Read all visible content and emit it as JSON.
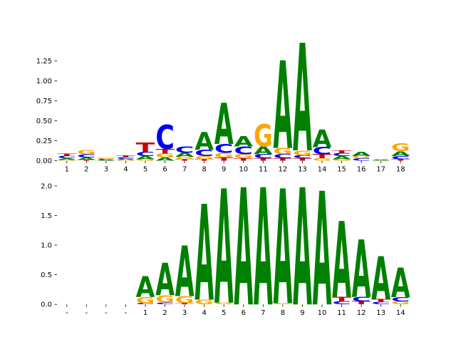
{
  "figure": {
    "title": ""
  },
  "colors": {
    "A": "#008000",
    "C": "#0000EE",
    "G": "#FFA500",
    "T": "#CC0000",
    "tick": "#000000",
    "background": "#ffffff"
  },
  "chart_data": [
    {
      "type": "sequence_logo",
      "panel": "top",
      "alphabet": "ACGT",
      "ylabel": "",
      "xlabel": "",
      "title": "",
      "grid": false,
      "legend": "none",
      "ylim": [
        0,
        1.5
      ],
      "yticks": [
        "0.00",
        "0.25",
        "0.50",
        "0.75",
        "1.00",
        "1.25"
      ],
      "positions": [
        {
          "label": "1",
          "stack": [
            [
              "G",
              0.01
            ],
            [
              "A",
              0.02
            ],
            [
              "C",
              0.03
            ],
            [
              "T",
              0.03
            ]
          ]
        },
        {
          "label": "2",
          "stack": [
            [
              "T",
              0.01
            ],
            [
              "A",
              0.03
            ],
            [
              "C",
              0.04
            ],
            [
              "G",
              0.05
            ]
          ]
        },
        {
          "label": "3",
          "stack": [
            [
              "A",
              0.01
            ],
            [
              "C",
              0.012
            ],
            [
              "G",
              0.015
            ]
          ]
        },
        {
          "label": "4",
          "stack": [
            [
              "G",
              0.01
            ],
            [
              "A",
              0.015
            ],
            [
              "C",
              0.02
            ],
            [
              "T",
              0.025
            ]
          ]
        },
        {
          "label": "5",
          "stack": [
            [
              "G",
              0.02
            ],
            [
              "A",
              0.04
            ],
            [
              "C",
              0.05
            ],
            [
              "T",
              0.12
            ]
          ]
        },
        {
          "label": "6",
          "stack": [
            [
              "A",
              0.04
            ],
            [
              "G",
              0.05
            ],
            [
              "T",
              0.06
            ],
            [
              "C",
              0.3
            ]
          ]
        },
        {
          "label": "7",
          "stack": [
            [
              "T",
              0.02
            ],
            [
              "G",
              0.03
            ],
            [
              "A",
              0.05
            ],
            [
              "C",
              0.08
            ]
          ]
        },
        {
          "label": "8",
          "stack": [
            [
              "T",
              0.02
            ],
            [
              "G",
              0.04
            ],
            [
              "C",
              0.08
            ],
            [
              "A",
              0.22
            ]
          ]
        },
        {
          "label": "9",
          "stack": [
            [
              "T",
              0.04
            ],
            [
              "G",
              0.06
            ],
            [
              "C",
              0.11
            ],
            [
              "A",
              0.52
            ]
          ]
        },
        {
          "label": "10",
          "stack": [
            [
              "T",
              0.03
            ],
            [
              "G",
              0.05
            ],
            [
              "C",
              0.1
            ],
            [
              "A",
              0.13
            ]
          ]
        },
        {
          "label": "11",
          "stack": [
            [
              "T",
              0.03
            ],
            [
              "C",
              0.05
            ],
            [
              "A",
              0.1
            ],
            [
              "G",
              0.28
            ]
          ]
        },
        {
          "label": "12",
          "stack": [
            [
              "T",
              0.03
            ],
            [
              "C",
              0.05
            ],
            [
              "G",
              0.08
            ],
            [
              "A",
              1.1
            ]
          ]
        },
        {
          "label": "13",
          "stack": [
            [
              "T",
              0.03
            ],
            [
              "C",
              0.04
            ],
            [
              "G",
              0.06
            ],
            [
              "A",
              1.35
            ]
          ]
        },
        {
          "label": "14",
          "stack": [
            [
              "G",
              0.03
            ],
            [
              "T",
              0.05
            ],
            [
              "C",
              0.09
            ],
            [
              "A",
              0.22
            ]
          ]
        },
        {
          "label": "15",
          "stack": [
            [
              "G",
              0.02
            ],
            [
              "A",
              0.04
            ],
            [
              "C",
              0.04
            ],
            [
              "T",
              0.03
            ]
          ]
        },
        {
          "label": "16",
          "stack": [
            [
              "C",
              0.03
            ],
            [
              "G",
              0.03
            ],
            [
              "A",
              0.05
            ]
          ]
        },
        {
          "label": "17",
          "stack": [
            [
              "A",
              0.01
            ],
            [
              "G",
              0.01
            ]
          ]
        },
        {
          "label": "18",
          "stack": [
            [
              "T",
              0.02
            ],
            [
              "C",
              0.04
            ],
            [
              "A",
              0.06
            ],
            [
              "G",
              0.1
            ]
          ]
        }
      ]
    },
    {
      "type": "sequence_logo",
      "panel": "bottom",
      "alphabet": "ACGT",
      "ylabel": "",
      "xlabel": "",
      "title": "",
      "grid": false,
      "legend": "none",
      "ylim": [
        0,
        2.02
      ],
      "yticks": [
        "0.0",
        "0.5",
        "1.0",
        "1.5",
        "2.0"
      ],
      "positions": [
        {
          "label": "-",
          "stack": []
        },
        {
          "label": "-",
          "stack": []
        },
        {
          "label": "-",
          "stack": []
        },
        {
          "label": "-",
          "stack": []
        },
        {
          "label": "1",
          "stack": [
            [
              "C",
              0.02
            ],
            [
              "G",
              0.1
            ],
            [
              "A",
              0.35
            ]
          ]
        },
        {
          "label": "2",
          "stack": [
            [
              "C",
              0.03
            ],
            [
              "G",
              0.12
            ],
            [
              "A",
              0.55
            ]
          ]
        },
        {
          "label": "3",
          "stack": [
            [
              "T",
              0.02
            ],
            [
              "G",
              0.12
            ],
            [
              "A",
              0.85
            ]
          ]
        },
        {
          "label": "4",
          "stack": [
            [
              "G",
              0.08
            ],
            [
              "A",
              1.62
            ]
          ]
        },
        {
          "label": "5",
          "stack": [
            [
              "G",
              0.03
            ],
            [
              "A",
              1.93
            ]
          ]
        },
        {
          "label": "6",
          "stack": [
            [
              "A",
              1.98
            ]
          ]
        },
        {
          "label": "7",
          "stack": [
            [
              "A",
              1.98
            ]
          ]
        },
        {
          "label": "8",
          "stack": [
            [
              "G",
              0.02
            ],
            [
              "A",
              1.94
            ]
          ]
        },
        {
          "label": "9",
          "stack": [
            [
              "A",
              1.98
            ]
          ]
        },
        {
          "label": "10",
          "stack": [
            [
              "A",
              1.92
            ]
          ]
        },
        {
          "label": "11",
          "stack": [
            [
              "C",
              0.05
            ],
            [
              "T",
              0.08
            ],
            [
              "A",
              1.28
            ]
          ]
        },
        {
          "label": "12",
          "stack": [
            [
              "T",
              0.05
            ],
            [
              "C",
              0.08
            ],
            [
              "A",
              0.97
            ]
          ]
        },
        {
          "label": "13",
          "stack": [
            [
              "C",
              0.04
            ],
            [
              "T",
              0.05
            ],
            [
              "A",
              0.72
            ]
          ]
        },
        {
          "label": "14",
          "stack": [
            [
              "G",
              0.05
            ],
            [
              "C",
              0.07
            ],
            [
              "A",
              0.5
            ]
          ]
        }
      ]
    }
  ]
}
